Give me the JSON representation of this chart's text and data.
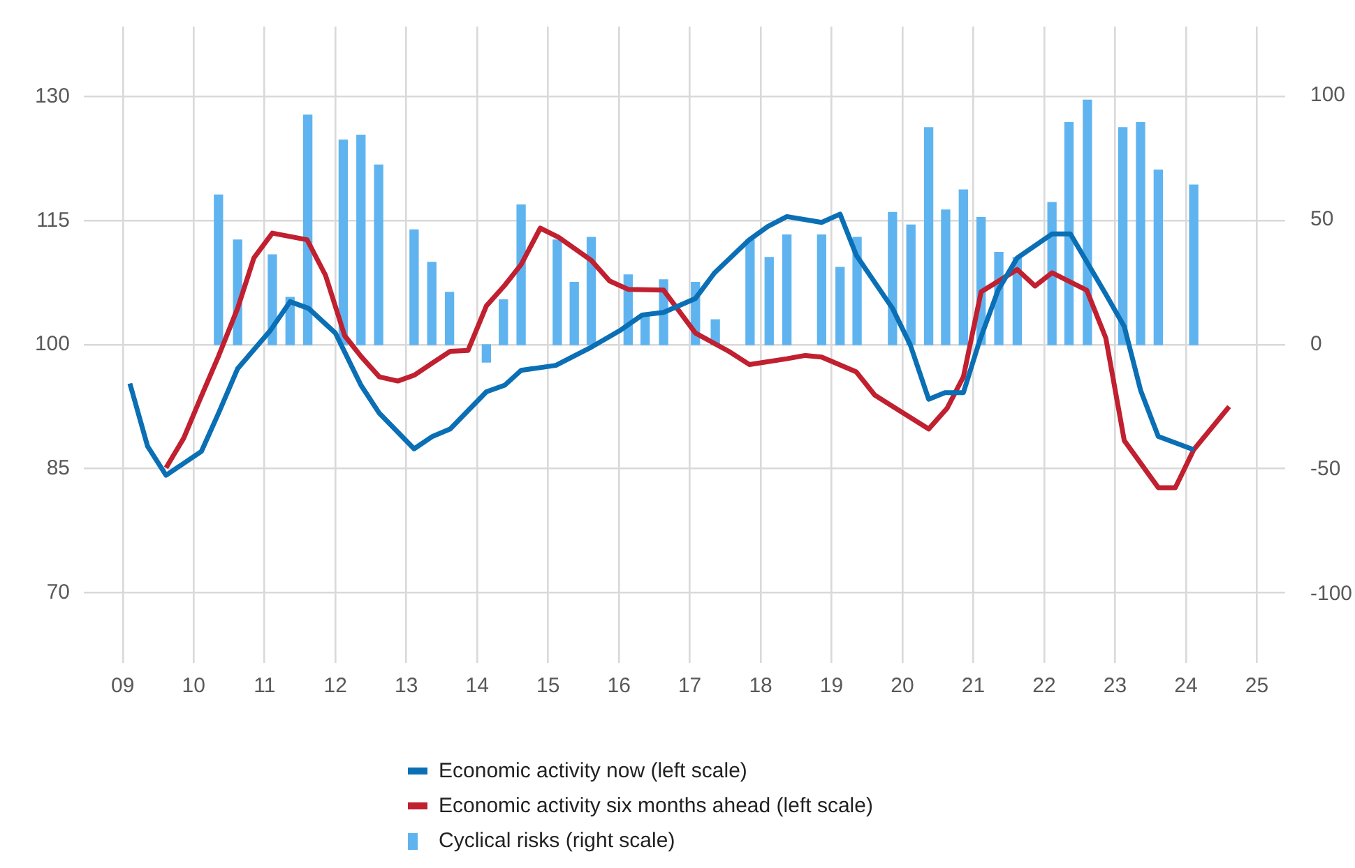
{
  "chart_data": {
    "type": "line",
    "xlim": [
      2008.45,
      2025.4
    ],
    "xticks": [
      {
        "value": 2009,
        "label": "09"
      },
      {
        "value": 2010,
        "label": "10"
      },
      {
        "value": 2011,
        "label": "11"
      },
      {
        "value": 2012,
        "label": "12"
      },
      {
        "value": 2013,
        "label": "13"
      },
      {
        "value": 2014,
        "label": "14"
      },
      {
        "value": 2015,
        "label": "15"
      },
      {
        "value": 2016,
        "label": "16"
      },
      {
        "value": 2017,
        "label": "17"
      },
      {
        "value": 2018,
        "label": "18"
      },
      {
        "value": 2019,
        "label": "19"
      },
      {
        "value": 2020,
        "label": "20"
      },
      {
        "value": 2021,
        "label": "21"
      },
      {
        "value": 2022,
        "label": "22"
      },
      {
        "value": 2023,
        "label": "23"
      },
      {
        "value": 2024,
        "label": "24"
      },
      {
        "value": 2025,
        "label": "25"
      }
    ],
    "ylim": [
      61.5,
      138.5
    ],
    "yticks": [
      70,
      85,
      100,
      115,
      130
    ],
    "y2lim": [
      -127.5,
      127.5
    ],
    "y2ticks": [
      -100,
      -50,
      0,
      50,
      100
    ],
    "grid": true,
    "legend": "bottom",
    "marker": "none",
    "series": [
      {
        "name": "Cyclical risks (right scale)",
        "type": "bar",
        "axis": "y2",
        "color": "#5fb4f0",
        "x": [
          2010.35,
          2010.62,
          2011.11,
          2011.36,
          2011.61,
          2012.11,
          2012.36,
          2012.61,
          2013.11,
          2013.36,
          2013.61,
          2014.13,
          2014.37,
          2014.62,
          2015.13,
          2015.37,
          2015.61,
          2016.13,
          2016.37,
          2016.63,
          2017.08,
          2017.36,
          2017.85,
          2018.12,
          2018.37,
          2018.86,
          2019.12,
          2019.36,
          2019.86,
          2020.12,
          2020.37,
          2020.61,
          2020.86,
          2021.11,
          2021.36,
          2021.62,
          2022.11,
          2022.35,
          2022.61,
          2023.11,
          2023.36,
          2023.61,
          2024.11
        ],
        "values": [
          60,
          42,
          36,
          19,
          92,
          82,
          84,
          72,
          46,
          33,
          21,
          -7,
          18,
          56,
          42,
          25,
          43,
          28,
          12,
          26,
          25,
          10,
          42,
          35,
          44,
          44,
          31,
          43,
          53,
          48,
          87,
          54,
          62,
          51,
          37,
          35,
          57,
          89,
          98,
          87,
          89,
          70,
          64
        ]
      },
      {
        "name": "Economic activity now (left scale)",
        "color": "#0a6fb4",
        "x": [
          2009.1,
          2009.35,
          2009.61,
          2010.11,
          2010.35,
          2010.62,
          2011.08,
          2011.36,
          2011.62,
          2012.0,
          2012.36,
          2012.62,
          2013.11,
          2013.37,
          2013.62,
          2014.13,
          2014.39,
          2014.62,
          2015.11,
          2015.61,
          2016.03,
          2016.33,
          2016.63,
          2017.08,
          2017.35,
          2017.84,
          2018.1,
          2018.37,
          2018.86,
          2019.12,
          2019.35,
          2019.86,
          2020.11,
          2020.37,
          2020.6,
          2020.86,
          2021.09,
          2021.35,
          2021.62,
          2022.11,
          2022.37,
          2022.87,
          2023.13,
          2023.36,
          2023.61,
          2024.11
        ],
        "values": [
          95.3,
          87.7,
          84.2,
          87.1,
          91.7,
          97.1,
          101.7,
          105.2,
          104.4,
          101.4,
          95.1,
          91.7,
          87.4,
          88.9,
          89.8,
          94.3,
          95.1,
          96.9,
          97.5,
          99.7,
          101.8,
          103.6,
          103.9,
          105.6,
          108.7,
          112.7,
          114.3,
          115.5,
          114.8,
          115.8,
          110.8,
          104.4,
          100.0,
          93.4,
          94.2,
          94.2,
          100.5,
          106.6,
          110.5,
          113.4,
          113.4,
          106.1,
          102.2,
          94.5,
          88.9,
          87.3
        ]
      },
      {
        "name": "Economic activity six months ahead (left scale)",
        "color": "#c0202f",
        "x": [
          2009.61,
          2009.86,
          2010.09,
          2010.35,
          2010.62,
          2010.85,
          2011.11,
          2011.6,
          2011.86,
          2012.13,
          2012.36,
          2012.62,
          2012.88,
          2013.11,
          2013.37,
          2013.62,
          2013.87,
          2014.13,
          2014.39,
          2014.62,
          2014.89,
          2015.15,
          2015.61,
          2015.87,
          2016.13,
          2016.63,
          2017.08,
          2017.55,
          2017.84,
          2018.37,
          2018.63,
          2018.86,
          2019.35,
          2019.61,
          2020.37,
          2020.63,
          2020.86,
          2021.11,
          2021.62,
          2021.87,
          2022.11,
          2022.6,
          2022.87,
          2023.13,
          2023.61,
          2023.85,
          2024.11,
          2024.61
        ],
        "values": [
          85.1,
          88.7,
          93.4,
          98.6,
          104.4,
          110.5,
          113.5,
          112.7,
          108.4,
          101.1,
          98.6,
          96.1,
          95.6,
          96.3,
          97.8,
          99.2,
          99.3,
          104.7,
          107.2,
          109.7,
          114.1,
          113.0,
          110.2,
          107.7,
          106.7,
          106.6,
          101.4,
          99.2,
          97.6,
          98.3,
          98.7,
          98.5,
          96.7,
          93.9,
          89.8,
          92.3,
          96.1,
          106.4,
          109.1,
          107.1,
          108.7,
          106.6,
          100.8,
          88.4,
          82.7,
          82.7,
          87.3,
          92.5
        ]
      }
    ]
  }
}
